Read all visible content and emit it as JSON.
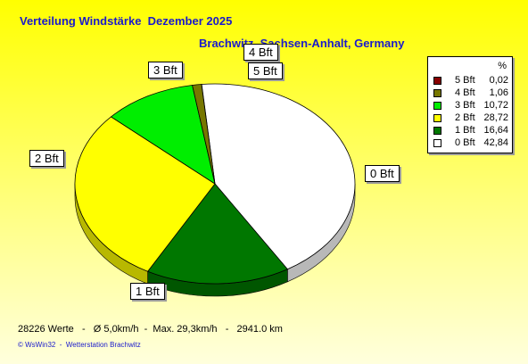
{
  "chart_data": {
    "type": "pie",
    "title": "Verteilung Windstärke  Dezember 2025",
    "subtitle": "Brachwitz, Sachsen-Anhalt, Germany",
    "legend_header": "%",
    "legend_placement": "top-right",
    "slices": [
      {
        "label": "0 Bft",
        "value": 42.84,
        "display": "42,84",
        "color": "#ffffff"
      },
      {
        "label": "1 Bft",
        "value": 16.64,
        "display": "16,64",
        "color": "#007700"
      },
      {
        "label": "2 Bft",
        "value": 28.72,
        "display": "28,72",
        "color": "#ffff00"
      },
      {
        "label": "3 Bft",
        "value": 10.72,
        "display": "10,72",
        "color": "#00ee00"
      },
      {
        "label": "4 Bft",
        "value": 1.06,
        "display": "1,06",
        "color": "#777700"
      },
      {
        "label": "5 Bft",
        "value": 0.02,
        "display": "0,02",
        "color": "#880000"
      }
    ]
  },
  "footer": {
    "stats": "28226 Werte   -   Ø 5,0km/h  -  Max. 29,3km/h   -   2941.0 km",
    "credit": "© WsWin32  -  Wetterstation Brachwitz"
  }
}
